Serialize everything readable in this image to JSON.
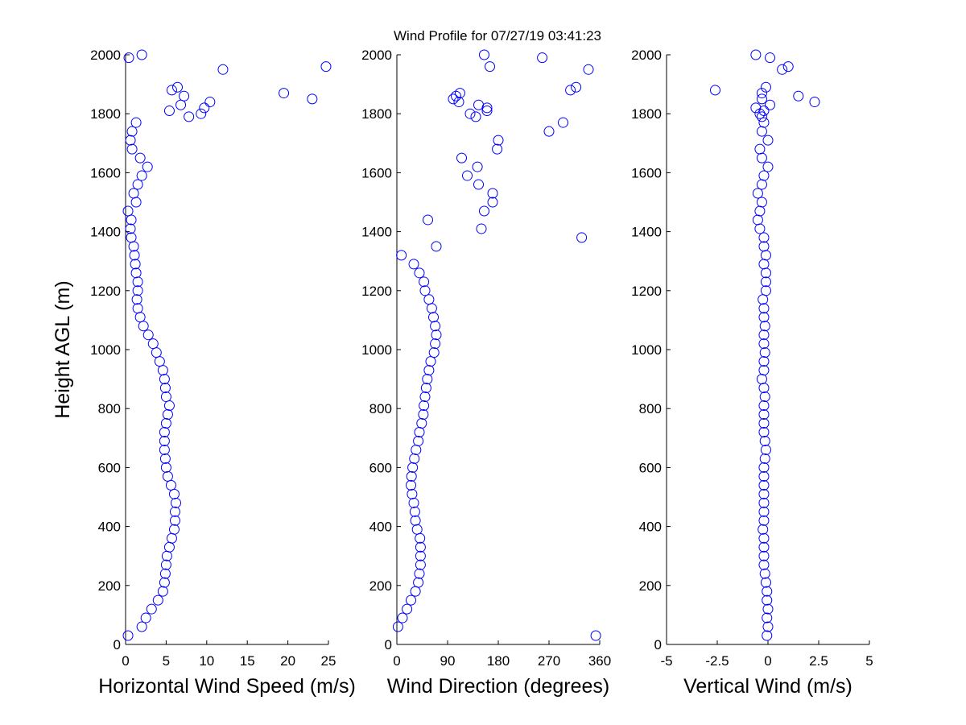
{
  "chart_data": [
    {
      "type": "scatter",
      "title": "Wind Profile for  07/27/19 03:41:23",
      "ylabel": "Height AGL (m)",
      "xlabel": "Horizontal Wind Speed (m/s)",
      "xlim": [
        0,
        25
      ],
      "xticks": [
        0,
        5,
        10,
        15,
        20,
        25
      ],
      "ylim": [
        0,
        2000
      ],
      "yticks": [
        0,
        200,
        400,
        600,
        800,
        1000,
        1200,
        1400,
        1600,
        1800,
        2000
      ],
      "series": [
        {
          "color": "#0000ff",
          "x": [
            0.3,
            2,
            2.5,
            3.2,
            4,
            4.6,
            4.8,
            4.9,
            5,
            5.1,
            5.4,
            5.7,
            6,
            6.1,
            6.1,
            6.2,
            6,
            5.6,
            5.2,
            5,
            4.9,
            4.8,
            4.8,
            4.8,
            5,
            5.2,
            5.4,
            5,
            4.9,
            4.8,
            4.6,
            4.2,
            3.8,
            3.4,
            2.8,
            2.2,
            1.8,
            1.5,
            1.4,
            1.5,
            1.5,
            1.3,
            1.2,
            1.1,
            1,
            0.7,
            0.6,
            0.7,
            0.3,
            1.3,
            1,
            1.5,
            2,
            2.7,
            1.8,
            0.8,
            0.6,
            0.8,
            1.3,
            7.8,
            9.3,
            5.4,
            9.7,
            6.8,
            10.4,
            23,
            7.2,
            19.5,
            5.7,
            6.4,
            12,
            24.7,
            0.4,
            2
          ],
          "y": [
            30,
            60,
            90,
            120,
            150,
            180,
            210,
            240,
            270,
            300,
            330,
            360,
            390,
            420,
            450,
            480,
            510,
            540,
            570,
            600,
            630,
            660,
            690,
            720,
            750,
            780,
            810,
            840,
            870,
            900,
            930,
            960,
            990,
            1020,
            1050,
            1080,
            1110,
            1140,
            1170,
            1200,
            1230,
            1260,
            1290,
            1320,
            1350,
            1380,
            1410,
            1440,
            1470,
            1500,
            1530,
            1560,
            1590,
            1620,
            1650,
            1680,
            1710,
            1740,
            1770,
            1790,
            1800,
            1810,
            1820,
            1830,
            1840,
            1850,
            1860,
            1870,
            1880,
            1890,
            1950,
            1960,
            1990,
            2000
          ]
        }
      ]
    },
    {
      "type": "scatter",
      "xlabel": "Wind Direction (degrees)",
      "xlim": [
        0,
        360
      ],
      "xticks": [
        0,
        90,
        180,
        270,
        360
      ],
      "ylim": [
        0,
        2000
      ],
      "yticks": [
        0,
        200,
        400,
        600,
        800,
        1000,
        1200,
        1400,
        1600,
        1800,
        2000
      ],
      "series": [
        {
          "color": "#0000ff",
          "x": [
            353,
            2,
            10,
            18,
            25,
            33,
            38,
            40,
            42,
            42,
            42,
            41,
            36,
            33,
            32,
            30,
            27,
            25,
            26,
            28,
            31,
            34,
            38,
            40,
            44,
            47,
            48,
            50,
            52,
            54,
            57,
            60,
            66,
            68,
            70,
            68,
            65,
            62,
            57,
            50,
            48,
            40,
            30,
            8,
            70,
            328,
            150,
            55,
            155,
            170,
            170,
            145,
            125,
            143,
            115,
            178,
            180,
            270,
            295,
            140,
            130,
            160,
            160,
            145,
            110,
            100,
            105,
            112,
            308,
            318,
            340,
            165,
            258,
            155
          ],
          "y": [
            30,
            60,
            90,
            120,
            150,
            180,
            210,
            240,
            270,
            300,
            330,
            360,
            390,
            420,
            450,
            480,
            510,
            540,
            570,
            600,
            630,
            660,
            690,
            720,
            750,
            780,
            810,
            840,
            870,
            900,
            930,
            960,
            990,
            1020,
            1050,
            1080,
            1110,
            1140,
            1170,
            1200,
            1230,
            1260,
            1290,
            1320,
            1350,
            1380,
            1410,
            1440,
            1470,
            1500,
            1530,
            1560,
            1590,
            1620,
            1650,
            1680,
            1710,
            1740,
            1770,
            1790,
            1800,
            1810,
            1820,
            1830,
            1840,
            1850,
            1860,
            1870,
            1880,
            1890,
            1950,
            1960,
            1990,
            2000
          ]
        }
      ]
    },
    {
      "type": "scatter",
      "xlabel": "Vertical Wind (m/s)",
      "xlim": [
        -5,
        5
      ],
      "xticks": [
        -5,
        -2.5,
        0,
        2.5,
        5
      ],
      "ylim": [
        0,
        2000
      ],
      "yticks": [
        0,
        200,
        400,
        600,
        800,
        1000,
        1200,
        1400,
        1600,
        1800,
        2000
      ],
      "series": [
        {
          "color": "#0000ff",
          "x": [
            -0.05,
            0,
            -0.05,
            0,
            -0.05,
            -0.05,
            -0.1,
            -0.15,
            -0.2,
            -0.2,
            -0.2,
            -0.2,
            -0.25,
            -0.2,
            -0.2,
            -0.2,
            -0.2,
            -0.2,
            -0.2,
            -0.2,
            -0.15,
            -0.1,
            -0.15,
            -0.2,
            -0.2,
            -0.2,
            -0.2,
            -0.15,
            -0.2,
            -0.3,
            -0.2,
            -0.2,
            -0.15,
            -0.2,
            -0.2,
            -0.15,
            -0.2,
            -0.2,
            -0.25,
            -0.1,
            -0.1,
            -0.1,
            -0.2,
            -0.1,
            -0.2,
            -0.2,
            -0.4,
            -0.5,
            -0.4,
            -0.3,
            -0.5,
            -0.3,
            -0.2,
            0,
            -0.3,
            -0.4,
            0,
            -0.3,
            -0.2,
            -0.3,
            -0.4,
            -0.2,
            -0.6,
            0.1,
            2.3,
            -0.3,
            1.5,
            -0.3,
            -2.6,
            -0.1,
            0.7,
            1,
            0.1,
            -0.6
          ],
          "y": [
            30,
            60,
            90,
            120,
            150,
            180,
            210,
            240,
            270,
            300,
            330,
            360,
            390,
            420,
            450,
            480,
            510,
            540,
            570,
            600,
            630,
            660,
            690,
            720,
            750,
            780,
            810,
            840,
            870,
            900,
            930,
            960,
            990,
            1020,
            1050,
            1080,
            1110,
            1140,
            1170,
            1200,
            1230,
            1260,
            1290,
            1320,
            1350,
            1380,
            1410,
            1440,
            1470,
            1500,
            1530,
            1560,
            1590,
            1620,
            1650,
            1680,
            1710,
            1740,
            1770,
            1790,
            1800,
            1810,
            1820,
            1830,
            1840,
            1850,
            1860,
            1870,
            1880,
            1890,
            1950,
            1960,
            1990,
            2000
          ]
        }
      ]
    }
  ]
}
